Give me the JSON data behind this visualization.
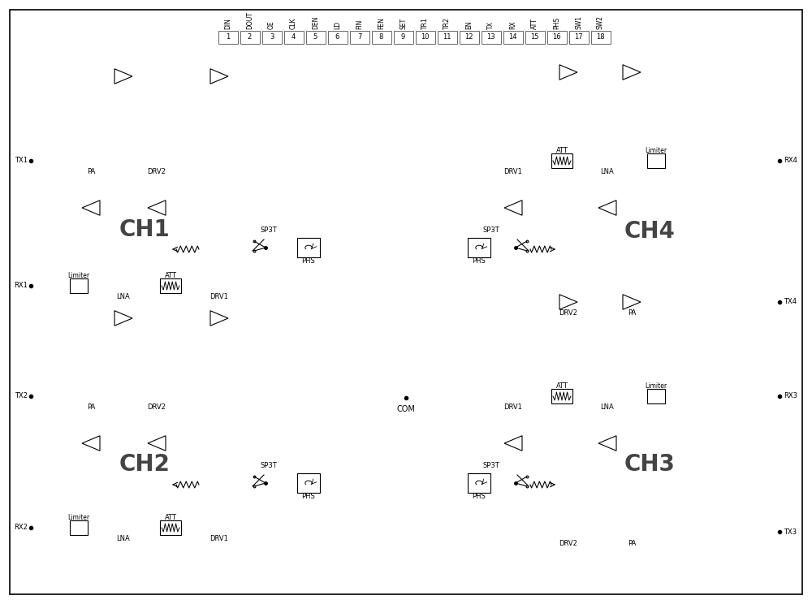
{
  "bg_color": "#ffffff",
  "pin_labels": [
    "DIN",
    "DOUT",
    "OE",
    "CLK",
    "DEN",
    "LD",
    "FIN",
    "FEN",
    "SET",
    "TR1",
    "TR2",
    "EN",
    "TX",
    "RX",
    "ATT",
    "PHS",
    "SW1",
    "SW2"
  ],
  "pin_numbers": [
    "1",
    "2",
    "3",
    "4",
    "5",
    "6",
    "7",
    "8",
    "9",
    "10",
    "11",
    "12",
    "13",
    "14",
    "15",
    "16",
    "17",
    "18"
  ],
  "ch1_label": "CH1",
  "ch2_label": "CH2",
  "ch3_label": "CH3",
  "ch4_label": "CH4",
  "com_label": "COM",
  "gray_line": "#888888",
  "dark_line": "#333333"
}
